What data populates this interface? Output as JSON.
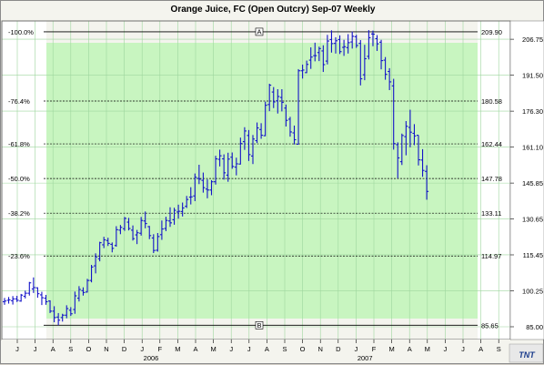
{
  "window": {
    "title": "Orange Juice, FC (Open Outcry) Sep-07  Weekly"
  },
  "logo": {
    "text": "TNT"
  },
  "chart_data": {
    "type": "ohlc",
    "title": "Orange Juice, FC (Open Outcry) Sep-07  Weekly",
    "colors": {
      "plot_bg": "#c8f5c0",
      "pre_bg": "#ffffff",
      "bars": "#1414c8",
      "grid": "#9ed69e"
    },
    "y_ticks": [
      85.0,
      100.25,
      115.45,
      130.65,
      145.85,
      161.1,
      176.3,
      191.5,
      206.75
    ],
    "ylim": [
      79.6,
      214.5
    ],
    "x_month_labels": [
      "J",
      "J",
      "A",
      "S",
      "O",
      "N",
      "D",
      "J",
      "F",
      "M",
      "A",
      "M",
      "J",
      "J",
      "A",
      "S",
      "O",
      "N",
      "D",
      "J",
      "F",
      "M",
      "A",
      "M",
      "J",
      "J",
      "A",
      "S"
    ],
    "year_labels": [
      {
        "label": "2006",
        "month_index": 7
      },
      {
        "label": "2007",
        "month_index": 19
      }
    ],
    "fib_levels": [
      {
        "pct": "-100.0%",
        "value": "209.90",
        "price": 209.9,
        "marker": "A",
        "solid": true
      },
      {
        "pct": "-76.4%",
        "value": "180.58",
        "price": 180.58,
        "solid": false
      },
      {
        "pct": "-61.8%",
        "value": "162.44",
        "price": 162.44,
        "solid": false
      },
      {
        "pct": "-50.0%",
        "value": "147.78",
        "price": 147.78,
        "solid": false
      },
      {
        "pct": "-38.2%",
        "value": "133.11",
        "price": 133.11,
        "solid": false
      },
      {
        "pct": "-23.6%",
        "value": "114.97",
        "price": 114.97,
        "solid": false
      },
      {
        "pct": "",
        "value": "85.65",
        "price": 85.65,
        "marker": "B",
        "solid": true
      }
    ],
    "weeks": [
      [
        95.6,
        97.2,
        94.3,
        95.9
      ],
      [
        96.2,
        97.6,
        94.8,
        96.4
      ],
      [
        96.0,
        98.0,
        94.4,
        96.8
      ],
      [
        96.8,
        98.1,
        95.5,
        96.2
      ],
      [
        95.9,
        98.9,
        95.6,
        98.4
      ],
      [
        97.9,
        100.3,
        97.0,
        99.2
      ],
      [
        99.2,
        104.0,
        98.2,
        103.6
      ],
      [
        101.0,
        105.9,
        99.3,
        101.6
      ],
      [
        101.5,
        101.7,
        97.3,
        99.0
      ],
      [
        98.5,
        99.8,
        94.2,
        97.3
      ],
      [
        97.1,
        98.5,
        94.3,
        95.6
      ],
      [
        95.9,
        96.2,
        90.8,
        91.6
      ],
      [
        91.6,
        93.7,
        86.9,
        88.9
      ],
      [
        89.1,
        90.8,
        85.7,
        87.8
      ],
      [
        88.9,
        90.5,
        87.2,
        89.9
      ],
      [
        89.9,
        94.1,
        88.6,
        92.7
      ],
      [
        92.0,
        93.3,
        89.6,
        90.5
      ],
      [
        92.3,
        99.9,
        90.5,
        98.1
      ],
      [
        97.1,
        102.2,
        95.7,
        100.8
      ],
      [
        100.3,
        101.7,
        98.2,
        99.5
      ],
      [
        99.7,
        105.3,
        99.5,
        104.6
      ],
      [
        104.6,
        111.2,
        103.8,
        110.3
      ],
      [
        110.8,
        116.1,
        107.6,
        114.6
      ],
      [
        113.8,
        121.0,
        112.7,
        120.6
      ],
      [
        119.7,
        123.1,
        118.3,
        121.8
      ],
      [
        121.5,
        122.7,
        119.2,
        120.3
      ],
      [
        119.9,
        120.7,
        116.5,
        118.2
      ],
      [
        119.4,
        127.6,
        118.9,
        126.1
      ],
      [
        125.9,
        128.1,
        124.2,
        127.1
      ],
      [
        126.5,
        131.5,
        125.6,
        130.9
      ],
      [
        129.3,
        131.1,
        125.8,
        126.6
      ],
      [
        125.9,
        127.9,
        121.5,
        122.3
      ],
      [
        123.9,
        126.0,
        120.0,
        124.8
      ],
      [
        124.6,
        131.5,
        123.6,
        130.0
      ],
      [
        129.8,
        133.8,
        126.7,
        128.7
      ],
      [
        127.4,
        127.7,
        122.1,
        123.6
      ],
      [
        122.6,
        124.2,
        116.2,
        117.3
      ],
      [
        117.4,
        124.7,
        116.8,
        123.2
      ],
      [
        124.0,
        130.0,
        121.8,
        126.4
      ],
      [
        126.6,
        131.6,
        125.5,
        130.0
      ],
      [
        129.8,
        135.6,
        127.3,
        129.0
      ],
      [
        130.3,
        135.4,
        128.2,
        134.3
      ],
      [
        133.6,
        136.7,
        130.8,
        133.9
      ],
      [
        133.8,
        137.6,
        131.7,
        135.3
      ],
      [
        136.0,
        140.4,
        135.3,
        138.9
      ],
      [
        139.9,
        144.1,
        136.8,
        140.0
      ],
      [
        140.4,
        149.9,
        138.2,
        148.3
      ],
      [
        147.8,
        153.6,
        145.4,
        147.5
      ],
      [
        147.0,
        150.3,
        141.8,
        143.9
      ],
      [
        143.3,
        147.4,
        139.4,
        142.9
      ],
      [
        142.9,
        147.1,
        140.7,
        146.4
      ],
      [
        146.4,
        157.4,
        145.2,
        156.1
      ],
      [
        155.9,
        160.0,
        152.9,
        157.4
      ],
      [
        156.1,
        158.0,
        147.3,
        150.2
      ],
      [
        149.2,
        158.7,
        146.4,
        156.0
      ],
      [
        156.8,
        158.8,
        151.9,
        152.9
      ],
      [
        152.6,
        156.6,
        149.1,
        154.0
      ],
      [
        153.9,
        165.1,
        153.7,
        162.6
      ],
      [
        163.4,
        169.5,
        159.9,
        167.9
      ],
      [
        166.0,
        168.3,
        155.2,
        157.9
      ],
      [
        157.3,
        166.2,
        153.9,
        164.5
      ],
      [
        163.8,
        171.5,
        162.8,
        169.2
      ],
      [
        168.5,
        171.2,
        164.6,
        166.1
      ],
      [
        165.9,
        180.3,
        165.7,
        178.8
      ],
      [
        179.1,
        187.9,
        176.3,
        187.3
      ],
      [
        184.4,
        186.5,
        177.6,
        180.2
      ],
      [
        180.7,
        185.6,
        175.3,
        182.5
      ],
      [
        182.1,
        185.6,
        176.2,
        180.0
      ],
      [
        177.6,
        179.1,
        169.8,
        172.4
      ],
      [
        172.9,
        173.9,
        165.5,
        167.5
      ],
      [
        167.1,
        170.2,
        162.2,
        164.2
      ],
      [
        162.3,
        194.1,
        162.2,
        193.4
      ],
      [
        193.4,
        196.0,
        190.1,
        193.7
      ],
      [
        192.6,
        197.7,
        192.4,
        196.1
      ],
      [
        197.9,
        203.3,
        194.2,
        199.2
      ],
      [
        199.8,
        205.3,
        197.4,
        199.8
      ],
      [
        201.1,
        203.6,
        197.5,
        202.8
      ],
      [
        201.8,
        204.2,
        192.9,
        196.0
      ],
      [
        197.5,
        208.6,
        196.1,
        206.0
      ],
      [
        206.6,
        210.5,
        201.1,
        204.9
      ],
      [
        205.0,
        207.6,
        200.7,
        206.1
      ],
      [
        206.6,
        208.4,
        200.5,
        201.5
      ],
      [
        203.3,
        206.5,
        199.7,
        203.6
      ],
      [
        203.2,
        208.9,
        200.7,
        205.3
      ],
      [
        205.6,
        210.0,
        202.8,
        208.0
      ],
      [
        207.8,
        208.6,
        203.1,
        204.1
      ],
      [
        205.0,
        206.4,
        187.2,
        190.0
      ],
      [
        191.7,
        204.4,
        189.4,
        198.5
      ],
      [
        199.5,
        210.6,
        198.2,
        207.4
      ],
      [
        209.0,
        210.4,
        203.8,
        208.9
      ],
      [
        207.0,
        208.5,
        201.8,
        204.8
      ],
      [
        205.5,
        206.5,
        194.0,
        197.7
      ],
      [
        197.9,
        199.2,
        189.6,
        191.9
      ],
      [
        193.1,
        194.5,
        185.2,
        188.7
      ],
      [
        187.0,
        190.0,
        160.0,
        162.6
      ],
      [
        162.1,
        163.1,
        147.9,
        156.5
      ],
      [
        154.9,
        166.8,
        153.5,
        166.0
      ],
      [
        165.5,
        172.1,
        157.6,
        169.9
      ],
      [
        169.4,
        176.9,
        161.0,
        167.4
      ],
      [
        166.9,
        170.8,
        161.9,
        165.8
      ],
      [
        166.1,
        166.1,
        153.3,
        155.7
      ],
      [
        155.6,
        160.2,
        148.5,
        151.2
      ],
      [
        150.8,
        153.4,
        138.8,
        142.3
      ]
    ]
  }
}
